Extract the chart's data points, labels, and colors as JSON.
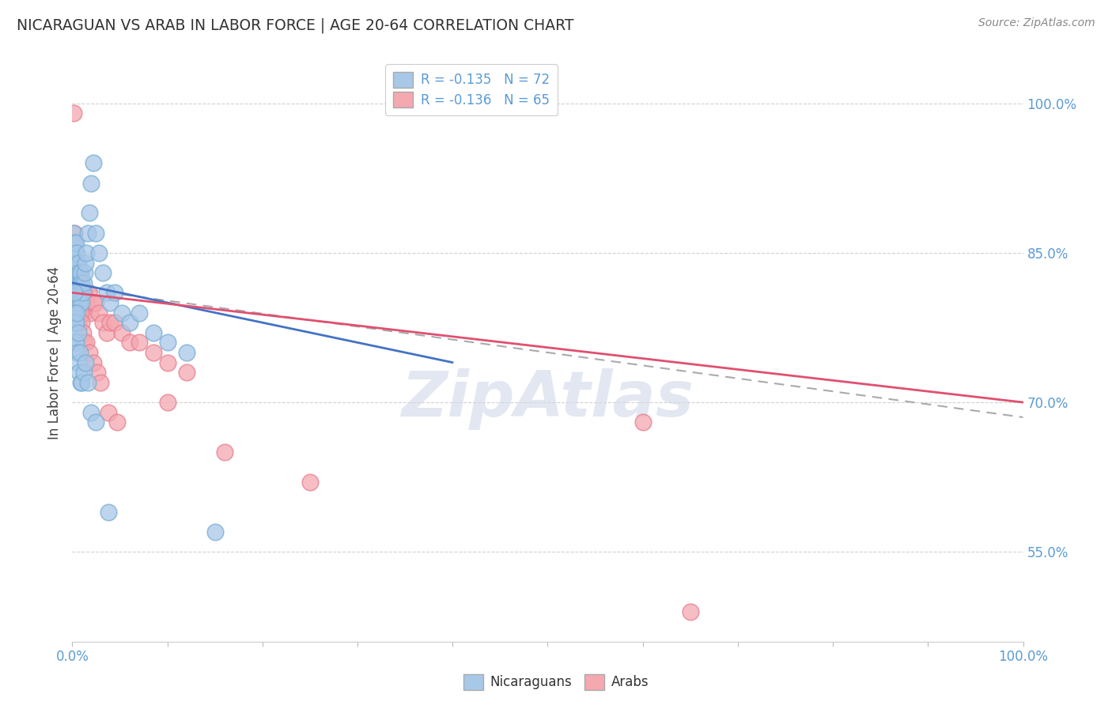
{
  "title": "NICARAGUAN VS ARAB IN LABOR FORCE | AGE 20-64 CORRELATION CHART",
  "source": "Source: ZipAtlas.com",
  "ylabel": "In Labor Force | Age 20-64",
  "legend_nicaraguan": "R = -0.135   N = 72",
  "legend_arab": "R = -0.136   N = 65",
  "blue_color": "#a8c8e8",
  "blue_edge_color": "#7bafd4",
  "pink_color": "#f4a8b0",
  "pink_edge_color": "#e88090",
  "blue_line_color": "#4472c4",
  "pink_line_color": "#e05070",
  "dashed_line_color": "#aaaaaa",
  "background_color": "#ffffff",
  "grid_color": "#cccccc",
  "title_color": "#404040",
  "watermark_text": "ZipAtlas",
  "xlim": [
    0.0,
    1.0
  ],
  "ylim": [
    0.46,
    1.04
  ],
  "nicaraguan_x": [
    0.001,
    0.001,
    0.001,
    0.002,
    0.002,
    0.002,
    0.002,
    0.003,
    0.003,
    0.003,
    0.003,
    0.004,
    0.004,
    0.004,
    0.004,
    0.005,
    0.005,
    0.005,
    0.006,
    0.006,
    0.006,
    0.007,
    0.007,
    0.008,
    0.008,
    0.009,
    0.009,
    0.01,
    0.01,
    0.011,
    0.012,
    0.013,
    0.014,
    0.015,
    0.016,
    0.018,
    0.02,
    0.022,
    0.025,
    0.028,
    0.032,
    0.036,
    0.04,
    0.045,
    0.052,
    0.06,
    0.07,
    0.085,
    0.1,
    0.12,
    0.001,
    0.002,
    0.002,
    0.003,
    0.003,
    0.004,
    0.004,
    0.005,
    0.005,
    0.006,
    0.006,
    0.007,
    0.008,
    0.009,
    0.01,
    0.012,
    0.014,
    0.016,
    0.02,
    0.025,
    0.038,
    0.15
  ],
  "nicaraguan_y": [
    0.82,
    0.85,
    0.87,
    0.8,
    0.82,
    0.84,
    0.86,
    0.79,
    0.81,
    0.83,
    0.85,
    0.8,
    0.82,
    0.84,
    0.86,
    0.81,
    0.83,
    0.85,
    0.8,
    0.82,
    0.84,
    0.81,
    0.83,
    0.8,
    0.82,
    0.81,
    0.83,
    0.8,
    0.82,
    0.81,
    0.82,
    0.83,
    0.84,
    0.85,
    0.87,
    0.89,
    0.92,
    0.94,
    0.87,
    0.85,
    0.83,
    0.81,
    0.8,
    0.81,
    0.79,
    0.78,
    0.79,
    0.77,
    0.76,
    0.75,
    0.77,
    0.79,
    0.81,
    0.78,
    0.76,
    0.78,
    0.76,
    0.79,
    0.75,
    0.77,
    0.74,
    0.73,
    0.75,
    0.72,
    0.72,
    0.73,
    0.74,
    0.72,
    0.69,
    0.68,
    0.59,
    0.57
  ],
  "arab_x": [
    0.001,
    0.002,
    0.002,
    0.003,
    0.003,
    0.003,
    0.004,
    0.004,
    0.004,
    0.005,
    0.005,
    0.005,
    0.006,
    0.006,
    0.007,
    0.007,
    0.008,
    0.008,
    0.009,
    0.009,
    0.01,
    0.011,
    0.012,
    0.013,
    0.015,
    0.017,
    0.019,
    0.022,
    0.025,
    0.028,
    0.032,
    0.036,
    0.04,
    0.045,
    0.052,
    0.06,
    0.07,
    0.085,
    0.1,
    0.12,
    0.002,
    0.003,
    0.003,
    0.004,
    0.005,
    0.006,
    0.006,
    0.007,
    0.008,
    0.009,
    0.01,
    0.011,
    0.012,
    0.015,
    0.018,
    0.022,
    0.026,
    0.03,
    0.038,
    0.047,
    0.1,
    0.16,
    0.25,
    0.6,
    0.65
  ],
  "arab_y": [
    0.99,
    0.82,
    0.86,
    0.8,
    0.82,
    0.84,
    0.81,
    0.83,
    0.85,
    0.8,
    0.82,
    0.84,
    0.8,
    0.82,
    0.81,
    0.83,
    0.8,
    0.82,
    0.81,
    0.83,
    0.8,
    0.81,
    0.79,
    0.81,
    0.8,
    0.81,
    0.79,
    0.8,
    0.8,
    0.79,
    0.78,
    0.77,
    0.78,
    0.78,
    0.77,
    0.76,
    0.76,
    0.75,
    0.74,
    0.73,
    0.87,
    0.85,
    0.82,
    0.8,
    0.82,
    0.81,
    0.78,
    0.79,
    0.8,
    0.79,
    0.78,
    0.77,
    0.76,
    0.76,
    0.75,
    0.74,
    0.73,
    0.72,
    0.69,
    0.68,
    0.7,
    0.65,
    0.62,
    0.68,
    0.49
  ],
  "nic_line_start": 0.0,
  "nic_line_end": 0.4,
  "arab_line_start": 0.0,
  "arab_line_end": 1.0,
  "nic_line_y_start": 0.82,
  "nic_line_y_end": 0.74,
  "arab_line_y_start": 0.81,
  "arab_line_y_end": 0.7,
  "dash_line_y_start": 0.815,
  "dash_line_y_end": 0.685
}
